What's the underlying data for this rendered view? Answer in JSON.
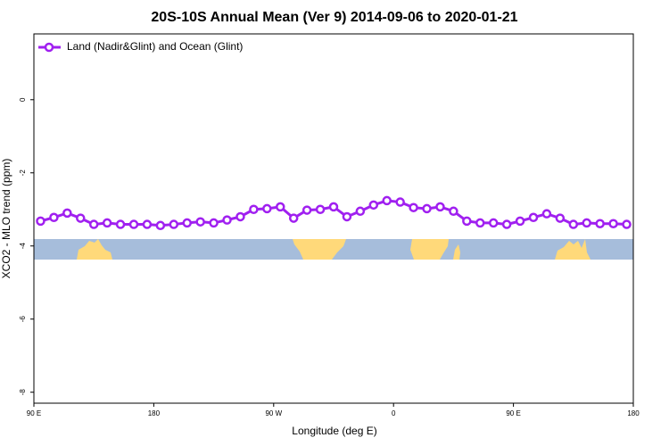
{
  "chart_data": {
    "type": "line",
    "title": "20S-10S Annual Mean (Ver 9)   2014-09-06 to 2020-01-21",
    "x_label": "Longitude (deg E)",
    "y_label": "XCO2 - MLO trend (ppm)",
    "xlim": [
      90,
      540
    ],
    "xticks": [
      {
        "value": 90,
        "label": "90 E"
      },
      180,
      {
        "value": 270,
        "label": "90 W"
      },
      {
        "value": 360,
        "label": "0"
      },
      {
        "value": 450,
        "label": "90 E"
      },
      {
        "value": 540,
        "label": "180"
      }
    ],
    "ylim": [
      -8.3,
      1.8
    ],
    "yticks": [
      0,
      -2,
      -4,
      -6,
      -8
    ],
    "legend": "top-left",
    "x": [
      95,
      105,
      115,
      125,
      135,
      145,
      155,
      165,
      175,
      185,
      195,
      205,
      215,
      225,
      235,
      245,
      255,
      265,
      275,
      285,
      295,
      305,
      315,
      325,
      335,
      345,
      355,
      365,
      375,
      385,
      395,
      405,
      415,
      425,
      435,
      445,
      455,
      465,
      475,
      485,
      495,
      505,
      515,
      525,
      535
    ],
    "series": [
      {
        "name": "Land (Nadir&Glint) and Ocean (Glint)",
        "color": "#a020f0",
        "values": [
          -3.32,
          -3.22,
          -3.1,
          -3.24,
          -3.41,
          -3.37,
          -3.41,
          -3.41,
          -3.41,
          -3.44,
          -3.41,
          -3.37,
          -3.34,
          -3.37,
          -3.29,
          -3.2,
          -3.0,
          -2.98,
          -2.93,
          -3.24,
          -3.02,
          -3.0,
          -2.93,
          -3.2,
          -3.05,
          -2.88,
          -2.76,
          -2.8,
          -2.95,
          -2.98,
          -2.93,
          -3.05,
          -3.32,
          -3.37,
          -3.37,
          -3.41,
          -3.32,
          -3.22,
          -3.12,
          -3.24,
          -3.41,
          -3.37,
          -3.39,
          -3.39,
          -3.41
        ]
      }
    ]
  }
}
